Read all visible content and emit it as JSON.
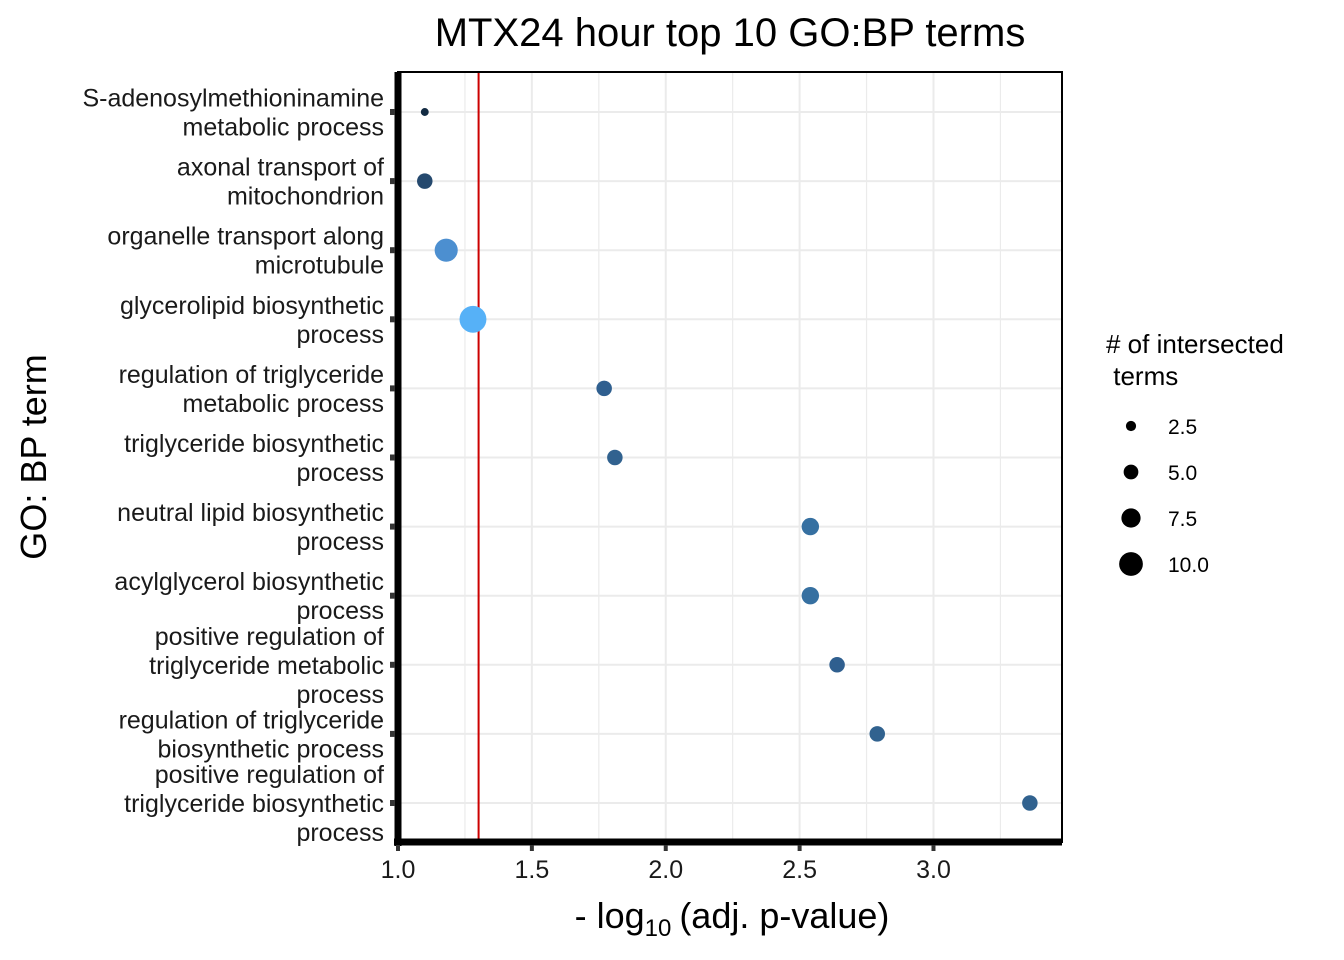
{
  "chart_data": {
    "type": "scatter",
    "title": "MTX24 hour top 10 GO:BP terms",
    "xlabel_prefix": "- log",
    "xlabel_sub": "10",
    "xlabel_suffix": "(adj. p-value)",
    "ylabel": "GO: BP term",
    "xlim": [
      1.0,
      3.48
    ],
    "xticks": [
      "1.0",
      "1.5",
      "2.0",
      "2.5",
      "3.0"
    ],
    "threshold_x": 1.301,
    "threshold_color": "#cc0000",
    "grid": true,
    "legend_placement": "right",
    "legend_title_lines": [
      "# of intersected",
      " terms"
    ],
    "legend_items": [
      {
        "label": "2.5",
        "size": 2.5
      },
      {
        "label": "5.0",
        "size": 5.0
      },
      {
        "label": "7.5",
        "size": 7.5
      },
      {
        "label": "10.0",
        "size": 10.0
      }
    ],
    "points": [
      {
        "term_lines": [
          "S-adenosylmethioninamine",
          "metabolic process"
        ],
        "x": 1.1,
        "size": 1,
        "color": "#132b43"
      },
      {
        "term_lines": [
          "axonal transport of",
          "mitochondrion"
        ],
        "x": 1.1,
        "size": 5,
        "color": "#25496e"
      },
      {
        "term_lines": [
          "organelle transport along",
          "microtubule"
        ],
        "x": 1.18,
        "size": 9,
        "color": "#4c8fd0"
      },
      {
        "term_lines": [
          "glycerolipid biosynthetic",
          "process"
        ],
        "x": 1.28,
        "size": 11,
        "color": "#56b1f7"
      },
      {
        "term_lines": [
          "regulation of triglyceride",
          "metabolic process"
        ],
        "x": 1.77,
        "size": 5,
        "color": "#2f5f8f"
      },
      {
        "term_lines": [
          "triglyceride biosynthetic",
          "process"
        ],
        "x": 1.81,
        "size": 5,
        "color": "#31628f"
      },
      {
        "term_lines": [
          "neutral lipid biosynthetic",
          "process"
        ],
        "x": 2.54,
        "size": 6,
        "color": "#3670a1"
      },
      {
        "term_lines": [
          "acylglycerol biosynthetic",
          "process"
        ],
        "x": 2.54,
        "size": 6,
        "color": "#3670a1"
      },
      {
        "term_lines": [
          "positive regulation of",
          "triglyceride metabolic",
          "process"
        ],
        "x": 2.64,
        "size": 5,
        "color": "#2f5f8f"
      },
      {
        "term_lines": [
          "regulation of triglyceride",
          "biosynthetic process"
        ],
        "x": 2.79,
        "size": 5,
        "color": "#31628f"
      },
      {
        "term_lines": [
          "positive regulation of",
          "triglyceride biosynthetic",
          "process"
        ],
        "x": 3.36,
        "size": 5,
        "color": "#31628f"
      }
    ]
  }
}
